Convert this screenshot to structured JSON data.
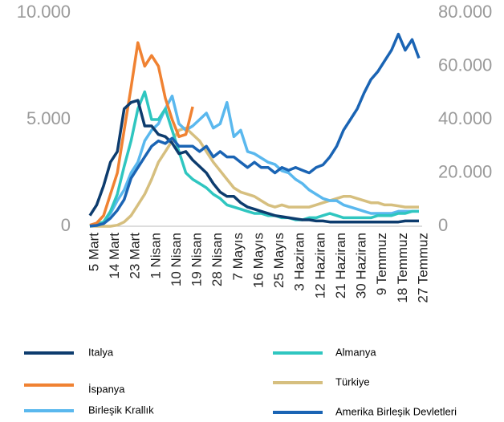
{
  "chart_data": {
    "type": "line",
    "categories": [
      "5 Mart",
      null,
      null,
      "14 Mart",
      null,
      null,
      "23 Mart",
      null,
      null,
      "1 Nisan",
      null,
      null,
      "10 Nisan",
      null,
      null,
      "19 Nisan",
      null,
      null,
      "28 Nisan",
      null,
      null,
      "7 Mayıs",
      null,
      null,
      "16 Mayıs",
      null,
      null,
      "25 Mayıs",
      null,
      null,
      "3 Haziran",
      null,
      null,
      "12 Haziran",
      null,
      null,
      "21 Haziran",
      null,
      null,
      "30 Haziran",
      null,
      null,
      "9 Temmuz",
      null,
      null,
      "18 Temmuz",
      null,
      null,
      "27 Temmuz"
    ],
    "ylim": [
      0,
      10000
    ],
    "yticks": [
      0,
      {
        "value": 5000,
        "label": "5.000"
      },
      {
        "value": 10000,
        "label": "10.000"
      }
    ],
    "y2lim": [
      0,
      80000
    ],
    "y2ticks": [
      0,
      {
        "value": 20000,
        "label": "20.000"
      },
      {
        "value": 40000,
        "label": "40.000"
      },
      {
        "value": 60000,
        "label": "60.000"
      },
      {
        "value": 80000,
        "label": "80.000"
      }
    ],
    "series": [
      {
        "name": "Italya",
        "color": "#0d3c6e",
        "values": [
          500,
          1000,
          1900,
          3000,
          3500,
          5500,
          5800,
          5900,
          4700,
          4700,
          4300,
          4200,
          3900,
          3400,
          3500,
          3100,
          2800,
          2500,
          2000,
          1600,
          1400,
          1400,
          1100,
          900,
          800,
          700,
          600,
          500,
          450,
          400,
          350,
          300,
          300,
          250,
          250,
          200,
          200,
          200,
          200,
          200,
          200,
          200,
          200,
          200,
          200,
          200,
          250,
          250,
          250
        ]
      },
      {
        "name": "İspanya",
        "color": "#f08232",
        "values": [
          50,
          150,
          500,
          1500,
          2500,
          4500,
          6500,
          8600,
          7500,
          8000,
          7500,
          6000,
          5000,
          4200,
          4300,
          5600,
          null,
          null,
          null,
          null,
          null,
          null,
          null,
          null,
          null,
          null,
          null,
          null,
          null,
          null,
          null,
          null,
          null,
          null,
          null,
          null,
          null,
          null,
          null,
          null,
          null,
          null,
          null,
          null,
          null,
          null,
          null,
          null,
          null
        ]
      },
      {
        "name": "Birleşik Krallık",
        "color": "#5ab8ee",
        "values": [
          0,
          50,
          200,
          600,
          1200,
          1700,
          2500,
          3000,
          4000,
          4500,
          4800,
          5500,
          6100,
          4800,
          4500,
          4700,
          5000,
          5300,
          4600,
          4800,
          5800,
          4200,
          4500,
          3500,
          3400,
          3200,
          3000,
          2900,
          2600,
          2500,
          2200,
          2000,
          1700,
          1500,
          1300,
          1200,
          1200,
          1000,
          900,
          800,
          700,
          600,
          600,
          600,
          600,
          700,
          700,
          700,
          700
        ]
      },
      {
        "name": "Almanya",
        "color": "#2fc6c0",
        "values": [
          0,
          100,
          200,
          700,
          1500,
          2800,
          4000,
          5500,
          6300,
          5000,
          5000,
          5500,
          4500,
          3500,
          2500,
          2200,
          2000,
          1800,
          1500,
          1300,
          1000,
          900,
          800,
          700,
          600,
          600,
          500,
          500,
          400,
          400,
          300,
          300,
          400,
          400,
          500,
          600,
          500,
          400,
          400,
          400,
          400,
          400,
          500,
          500,
          500,
          600,
          600,
          700,
          700
        ]
      },
      {
        "name": "Türkiye",
        "color": "#d6bf7f",
        "values": [
          0,
          0,
          0,
          0,
          50,
          200,
          500,
          1000,
          1500,
          2200,
          3000,
          3500,
          4000,
          4500,
          4600,
          4300,
          4000,
          3500,
          3000,
          2600,
          2200,
          1800,
          1600,
          1500,
          1400,
          1200,
          1000,
          900,
          1000,
          900,
          900,
          900,
          900,
          1000,
          1100,
          1200,
          1300,
          1400,
          1400,
          1300,
          1200,
          1100,
          1100,
          1000,
          1000,
          950,
          900,
          900,
          900
        ]
      },
      {
        "name": "Amerika Birleşik Devletleri",
        "color": "#1a64b4",
        "axis": "y2",
        "values": [
          100,
          300,
          1000,
          3000,
          6000,
          10000,
          18000,
          22000,
          26000,
          30000,
          32000,
          31000,
          33000,
          30000,
          30000,
          30000,
          28000,
          30000,
          26000,
          28000,
          26000,
          26000,
          24000,
          22000,
          24000,
          22000,
          22000,
          20000,
          22000,
          21000,
          22000,
          21000,
          20000,
          22000,
          23000,
          26000,
          30000,
          36000,
          40000,
          44000,
          50000,
          55000,
          58000,
          62000,
          66000,
          72000,
          66000,
          70000,
          63000
        ]
      }
    ]
  }
}
